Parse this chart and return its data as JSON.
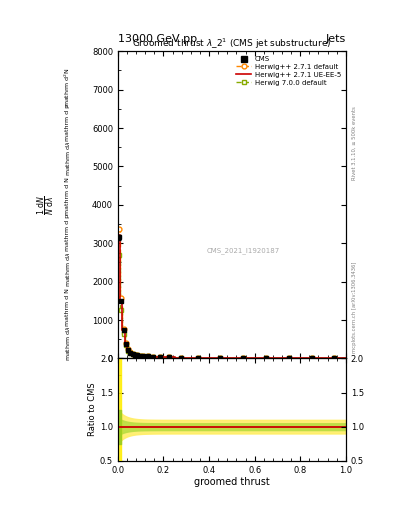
{
  "title_top": "13000 GeV pp",
  "title_right": "Jets",
  "plot_title": "Groomed thrustλ_2¹ (CMS jet substructure)",
  "xlabel": "groomed thrust",
  "ylabel_ratio": "Ratio to CMS",
  "watermark": "CMS_2021_I1920187",
  "right_label_top": "Rivet 3.1.10, ≥ 500k events",
  "right_label_bottom": "mcplots.cern.ch [arXiv:1306.3436]",
  "xlim": [
    0,
    1
  ],
  "ylim_main": [
    0,
    8000
  ],
  "ylim_ratio": [
    0.5,
    2.0
  ],
  "yticks_main": [
    0,
    1000,
    2000,
    3000,
    4000,
    5000,
    6000,
    7000,
    8000
  ],
  "yticks_ratio": [
    0.5,
    1.0,
    1.5,
    2.0
  ],
  "color_cms": "#000000",
  "color_herwig271": "#ff8800",
  "color_herwig271ue": "#cc0000",
  "color_herwig700": "#88aa00",
  "ratio_herwig271_band_color": "#ffee66",
  "ratio_herwig700_band_color": "#bbdd44",
  "background_color": "#ffffff"
}
